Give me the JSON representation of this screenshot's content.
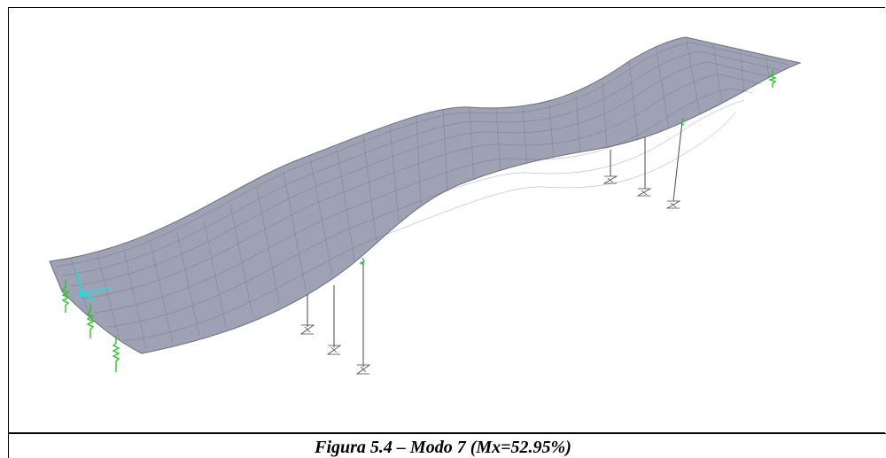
{
  "figure": {
    "caption": "Figura 5.4 – Modo 7 (Mx=52.95%)"
  },
  "model_view": {
    "deck_color": "#9fa1b4",
    "mesh_color": "#5b5e6f",
    "pier_color": "#4a4a4a",
    "support_color": "#22cc22",
    "axes_color": "#22dddd",
    "icons": [
      "axes-icon",
      "support-spring-icon",
      "pier-base-icon"
    ]
  }
}
